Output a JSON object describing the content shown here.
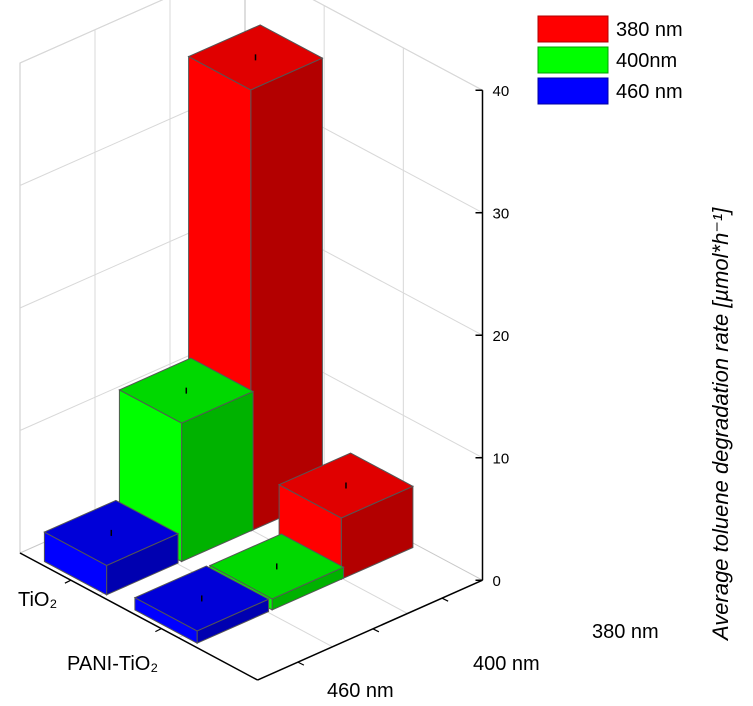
{
  "chart_data": {
    "type": "bar3d",
    "title": "",
    "ylabel": "Average toluene degradation rate [µmol*h⁻¹]",
    "ylim": [
      0,
      40
    ],
    "yticks": [
      0,
      10,
      20,
      30,
      40
    ],
    "categories": [
      "TiO₂",
      "PANI-TiO₂"
    ],
    "series_axis_labels": [
      "380 nm",
      "400 nm",
      "460 nm"
    ],
    "series": [
      {
        "name": "380 nm",
        "color": "#ff0000",
        "values": [
          36.0,
          5.0
        ]
      },
      {
        "name": "400nm",
        "color": "#00ff00",
        "values": [
          11.3,
          0.9
        ]
      },
      {
        "name": "460 nm",
        "color": "#0000ff",
        "values": [
          2.4,
          1.0
        ]
      }
    ],
    "grid": true,
    "legend_position": "top-right"
  }
}
